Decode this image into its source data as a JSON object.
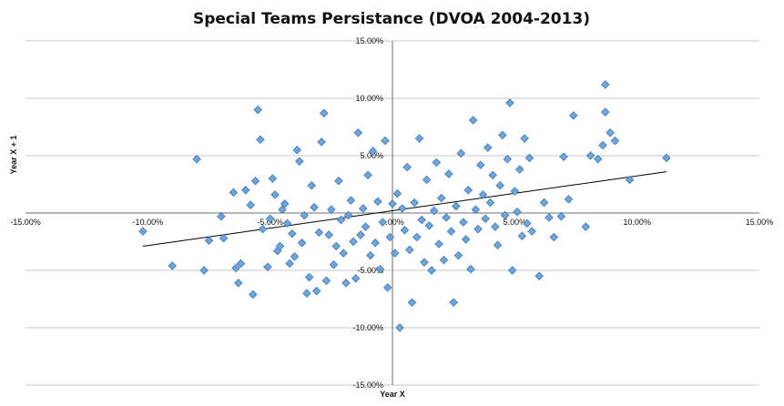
{
  "chart_data": {
    "type": "scatter",
    "title": "Special Teams Persistance (DVOA 2004-2013)",
    "xlabel": "Year X",
    "ylabel": "Year X + 1",
    "xlim": [
      -15,
      15
    ],
    "ylim": [
      -15,
      15
    ],
    "x_ticks": [
      -15,
      -10,
      -5,
      0,
      5,
      10,
      15
    ],
    "y_ticks": [
      -15,
      -10,
      -5,
      0,
      5,
      10,
      15
    ],
    "x_tick_labels": [
      "-15.00%",
      "-10.00%",
      "-5.00%",
      "0.00%",
      "5.00%",
      "10.00%",
      "15.00%"
    ],
    "y_tick_labels": [
      "-15.00%",
      "-10.00%",
      "-5.00%",
      "0.00%",
      "5.00%",
      "10.00%",
      "15.00%"
    ],
    "grid": true,
    "trendline": {
      "type": "linear",
      "x_range": [
        -10.2,
        11.2
      ],
      "y_start": -2.9,
      "y_end": 3.6
    },
    "points": [
      [
        -10.2,
        -1.6
      ],
      [
        -9,
        -4.6
      ],
      [
        -8,
        4.7
      ],
      [
        -7.7,
        -5
      ],
      [
        -7.5,
        -2.4
      ],
      [
        -7,
        -0.3
      ],
      [
        -6.9,
        -2.2
      ],
      [
        -6.5,
        1.8
      ],
      [
        -6.4,
        -4.8
      ],
      [
        -6.3,
        -6.1
      ],
      [
        -6.2,
        -4.4
      ],
      [
        -6,
        2
      ],
      [
        -5.8,
        0.7
      ],
      [
        -5.7,
        -7.1
      ],
      [
        -5.6,
        2.8
      ],
      [
        -5.5,
        9
      ],
      [
        -5.4,
        6.4
      ],
      [
        -5.3,
        -1.4
      ],
      [
        -5.1,
        -4.7
      ],
      [
        -5,
        -0.5
      ],
      [
        -4.9,
        3
      ],
      [
        -4.8,
        1.6
      ],
      [
        -4.7,
        -3.3
      ],
      [
        -4.6,
        -2.9
      ],
      [
        -4.5,
        0.3
      ],
      [
        -4.4,
        0.8
      ],
      [
        -4.3,
        -0.9
      ],
      [
        -4.2,
        -4.4
      ],
      [
        -4.1,
        -1.8
      ],
      [
        -4,
        -3.8
      ],
      [
        -3.9,
        5.5
      ],
      [
        -3.8,
        4.5
      ],
      [
        -3.7,
        -2.6
      ],
      [
        -3.6,
        -0.2
      ],
      [
        -3.5,
        -7
      ],
      [
        -3.4,
        -5.6
      ],
      [
        -3.3,
        2.4
      ],
      [
        -3.2,
        0.5
      ],
      [
        -3.1,
        -6.8
      ],
      [
        -3,
        -1.7
      ],
      [
        -2.9,
        6.2
      ],
      [
        -2.8,
        8.7
      ],
      [
        -2.7,
        -5.9
      ],
      [
        -2.6,
        -1.9
      ],
      [
        -2.5,
        0.3
      ],
      [
        -2.4,
        -4.5
      ],
      [
        -2.3,
        -2.9
      ],
      [
        -2.2,
        2.8
      ],
      [
        -2.1,
        -0.6
      ],
      [
        -2,
        -3.5
      ],
      [
        -1.9,
        -6.1
      ],
      [
        -1.8,
        -0.2
      ],
      [
        -1.7,
        1.1
      ],
      [
        -1.6,
        -2.5
      ],
      [
        -1.5,
        -5.7
      ],
      [
        -1.4,
        7
      ],
      [
        -1.3,
        -1.9
      ],
      [
        -1.2,
        0.4
      ],
      [
        -1.1,
        -1.2
      ],
      [
        -1,
        3.3
      ],
      [
        -0.9,
        -3.7
      ],
      [
        -0.8,
        5.4
      ],
      [
        -0.7,
        -2.6
      ],
      [
        -0.6,
        1
      ],
      [
        -0.5,
        -4.9
      ],
      [
        -0.4,
        -0.8
      ],
      [
        -0.3,
        6.3
      ],
      [
        -0.2,
        -6.5
      ],
      [
        -0.1,
        -2.1
      ],
      [
        0,
        0.8
      ],
      [
        0.1,
        -3.5
      ],
      [
        0.2,
        1.7
      ],
      [
        0.3,
        -10
      ],
      [
        0.4,
        0.4
      ],
      [
        0.5,
        -1.5
      ],
      [
        0.6,
        4
      ],
      [
        0.7,
        -3.2
      ],
      [
        0.8,
        -7.8
      ],
      [
        0.9,
        0.9
      ],
      [
        1,
        -2.1
      ],
      [
        1.1,
        6.5
      ],
      [
        1.2,
        -0.6
      ],
      [
        1.3,
        -4.3
      ],
      [
        1.4,
        2.9
      ],
      [
        1.5,
        -1.1
      ],
      [
        1.6,
        -5
      ],
      [
        1.7,
        0.2
      ],
      [
        1.8,
        4.4
      ],
      [
        1.9,
        -2.7
      ],
      [
        2,
        1.3
      ],
      [
        2.1,
        -4.1
      ],
      [
        2.2,
        -0.4
      ],
      [
        2.3,
        3.4
      ],
      [
        2.4,
        -1.6
      ],
      [
        2.5,
        -7.8
      ],
      [
        2.6,
        0.6
      ],
      [
        2.7,
        -3.7
      ],
      [
        2.8,
        5.2
      ],
      [
        2.9,
        -0.8
      ],
      [
        3,
        -2.3
      ],
      [
        3.1,
        2
      ],
      [
        3.2,
        -4.9
      ],
      [
        3.3,
        8.1
      ],
      [
        3.4,
        0.3
      ],
      [
        3.5,
        -1.4
      ],
      [
        3.6,
        4.2
      ],
      [
        3.7,
        1.6
      ],
      [
        3.8,
        -0.5
      ],
      [
        3.9,
        5.7
      ],
      [
        4,
        0.9
      ],
      [
        4.1,
        3.3
      ],
      [
        4.2,
        -1.2
      ],
      [
        4.3,
        -2.8
      ],
      [
        4.4,
        2.4
      ],
      [
        4.5,
        6.8
      ],
      [
        4.6,
        -0.2
      ],
      [
        4.7,
        4.7
      ],
      [
        4.8,
        9.6
      ],
      [
        4.9,
        -5
      ],
      [
        5,
        1.9
      ],
      [
        5.1,
        0.1
      ],
      [
        5.2,
        3.8
      ],
      [
        5.3,
        -2
      ],
      [
        5.4,
        6.5
      ],
      [
        5.5,
        -0.9
      ],
      [
        5.6,
        4.8
      ],
      [
        5.7,
        -1.6
      ],
      [
        6,
        -5.5
      ],
      [
        6.2,
        0.9
      ],
      [
        6.4,
        -0.4
      ],
      [
        6.6,
        -2.1
      ],
      [
        6.9,
        -0.3
      ],
      [
        7,
        4.9
      ],
      [
        7.2,
        1.2
      ],
      [
        7.4,
        8.5
      ],
      [
        7.9,
        -1.2
      ],
      [
        8.1,
        5
      ],
      [
        8.4,
        4.7
      ],
      [
        8.6,
        5.9
      ],
      [
        8.7,
        8.8
      ],
      [
        8.7,
        11.2
      ],
      [
        8.9,
        7
      ],
      [
        9.1,
        6.3
      ],
      [
        9.7,
        2.9
      ],
      [
        11.2,
        4.8
      ]
    ]
  }
}
